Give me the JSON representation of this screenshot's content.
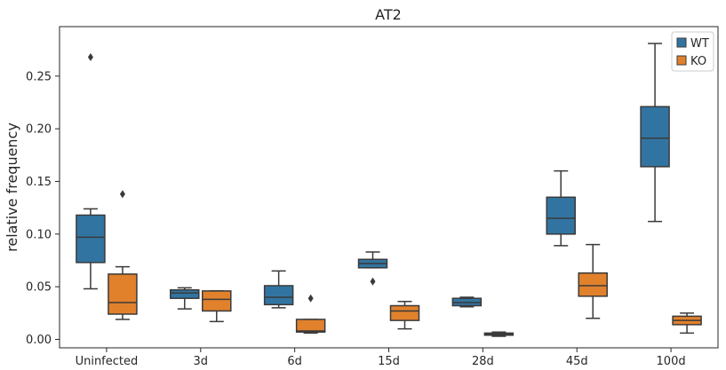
{
  "chart_data": {
    "type": "box",
    "title": "AT2",
    "xlabel": "",
    "ylabel": "relative frequency",
    "categories": [
      "Uninfected",
      "3d",
      "6d",
      "15d",
      "28d",
      "45d",
      "100d"
    ],
    "ylim": [
      -0.008,
      0.297
    ],
    "yticks": [
      0.0,
      0.05,
      0.1,
      0.15,
      0.2,
      0.25
    ],
    "ytick_labels": [
      "0.00",
      "0.05",
      "0.10",
      "0.15",
      "0.20",
      "0.25"
    ],
    "grid": false,
    "legend_position": "top-right",
    "series": [
      {
        "name": "WT",
        "color": "#3274a1",
        "boxes": [
          {
            "whislo": 0.048,
            "q1": 0.073,
            "med": 0.097,
            "q3": 0.118,
            "whishi": 0.124,
            "fliers": [
              0.268
            ]
          },
          {
            "whislo": 0.029,
            "q1": 0.039,
            "med": 0.044,
            "q3": 0.047,
            "whishi": 0.049,
            "fliers": []
          },
          {
            "whislo": 0.03,
            "q1": 0.033,
            "med": 0.04,
            "q3": 0.051,
            "whishi": 0.065,
            "fliers": []
          },
          {
            "whislo": 0.068,
            "q1": 0.068,
            "med": 0.072,
            "q3": 0.076,
            "whishi": 0.083,
            "fliers": [
              0.055
            ]
          },
          {
            "whislo": 0.031,
            "q1": 0.032,
            "med": 0.035,
            "q3": 0.039,
            "whishi": 0.04,
            "fliers": []
          },
          {
            "whislo": 0.089,
            "q1": 0.1,
            "med": 0.115,
            "q3": 0.135,
            "whishi": 0.16,
            "fliers": []
          },
          {
            "whislo": 0.112,
            "q1": 0.164,
            "med": 0.191,
            "q3": 0.221,
            "whishi": 0.281,
            "fliers": []
          }
        ]
      },
      {
        "name": "KO",
        "color": "#e1812c",
        "boxes": [
          {
            "whislo": 0.019,
            "q1": 0.024,
            "med": 0.035,
            "q3": 0.062,
            "whishi": 0.069,
            "fliers": [
              0.138
            ]
          },
          {
            "whislo": 0.017,
            "q1": 0.027,
            "med": 0.038,
            "q3": 0.046,
            "whishi": 0.046,
            "fliers": []
          },
          {
            "whislo": 0.006,
            "q1": 0.007,
            "med": 0.008,
            "q3": 0.019,
            "whishi": 0.019,
            "fliers": [
              0.039
            ]
          },
          {
            "whislo": 0.01,
            "q1": 0.018,
            "med": 0.027,
            "q3": 0.032,
            "whishi": 0.036,
            "fliers": []
          },
          {
            "whislo": 0.003,
            "q1": 0.004,
            "med": 0.005,
            "q3": 0.006,
            "whishi": 0.007,
            "fliers": []
          },
          {
            "whislo": 0.02,
            "q1": 0.041,
            "med": 0.051,
            "q3": 0.063,
            "whishi": 0.09,
            "fliers": []
          },
          {
            "whislo": 0.006,
            "q1": 0.014,
            "med": 0.018,
            "q3": 0.022,
            "whishi": 0.025,
            "fliers": []
          }
        ]
      }
    ]
  }
}
